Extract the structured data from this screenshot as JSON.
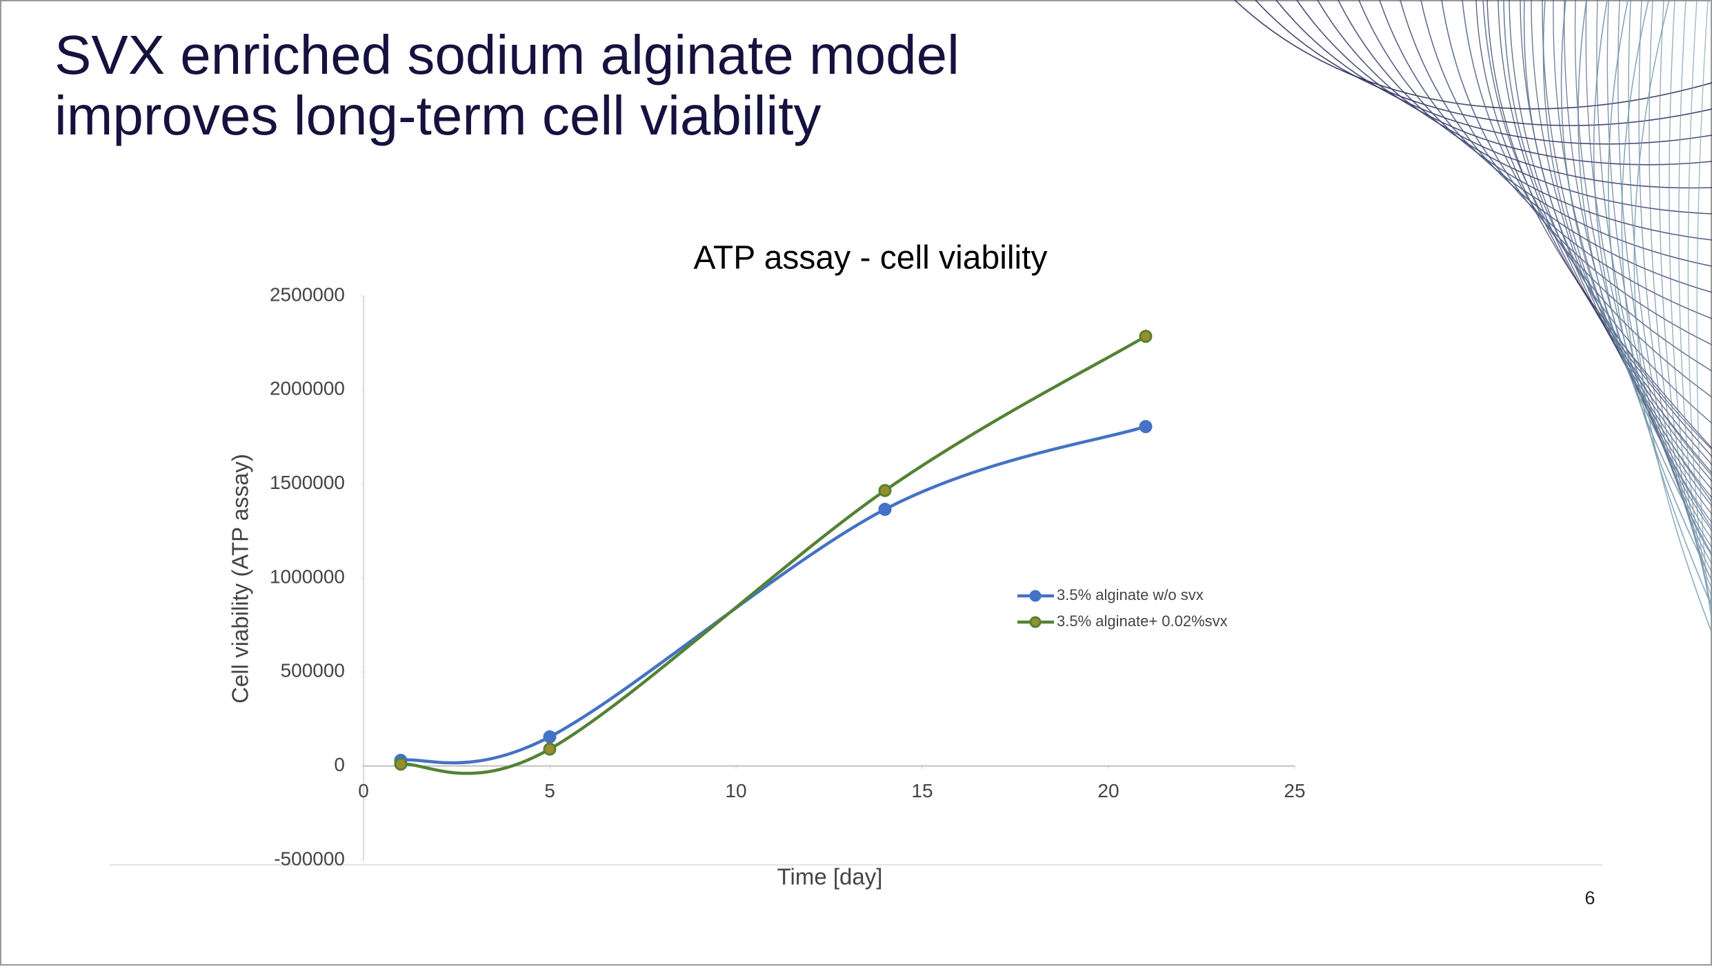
{
  "slide": {
    "title_lines": [
      "SVX enriched sodium alginate model",
      "improves long-term cell viability"
    ],
    "page_number": "6"
  },
  "chart_data": {
    "type": "line",
    "title": "ATP assay - cell viability",
    "x_label": "Time [day]",
    "y_label": "Cell viability (ATP assay)",
    "x": [
      1,
      5,
      14,
      21
    ],
    "series": [
      {
        "name": "3.5% alginate w/o svx",
        "color": "#4472c4",
        "marker_color": "#4472c4",
        "values": [
          30000,
          155000,
          1365000,
          1805000
        ]
      },
      {
        "name": "3.5% alginate+ 0.02%svx",
        "color": "#548235",
        "marker_color": "#9c8d2b",
        "values": [
          10000,
          90000,
          1465000,
          2285000
        ]
      }
    ],
    "xlim": [
      0,
      25
    ],
    "xticks": [
      0,
      5,
      10,
      15,
      20,
      25
    ],
    "ylim": [
      -500000,
      2500000
    ],
    "yticks": [
      -500000,
      0,
      500000,
      1000000,
      1500000,
      2000000,
      2500000
    ],
    "smooth": true
  }
}
